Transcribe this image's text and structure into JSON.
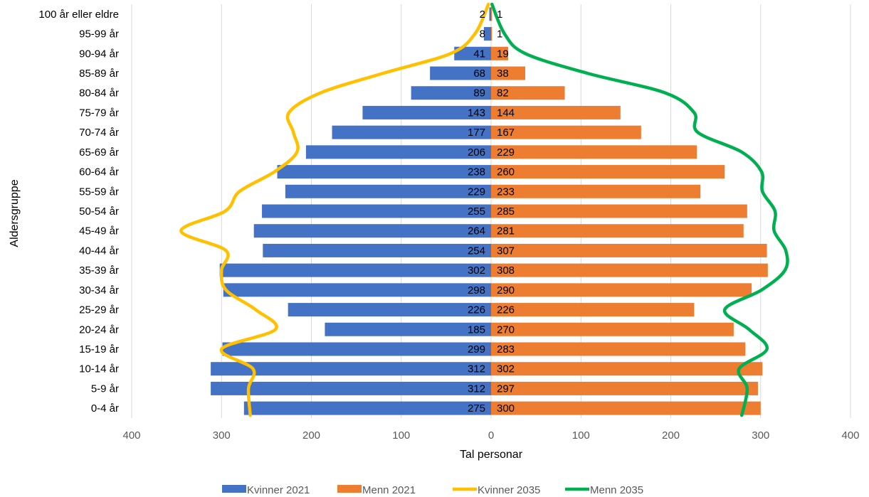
{
  "chart_data": {
    "type": "bar",
    "orientation": "horizontal",
    "title": "",
    "xlabel": "Tal personar",
    "ylabel": "Aldersgruppe",
    "xlim": [
      -400,
      400
    ],
    "x_ticks": [
      -400,
      -300,
      -200,
      -100,
      0,
      100,
      200,
      300,
      400
    ],
    "x_tick_labels": [
      "400",
      "300",
      "200",
      "100",
      "0",
      "100",
      "200",
      "300",
      "400"
    ],
    "grid": true,
    "legend_position": "bottom",
    "categories": [
      "0-4 år",
      "5-9 år",
      "10-14 år",
      "15-19 år",
      "20-24 år",
      "25-29 år",
      "30-34 år",
      "35-39 år",
      "40-44 år",
      "45-49 år",
      "50-54 år",
      "55-59 år",
      "60-64 år",
      "65-69 år",
      "70-74 år",
      "75-79 år",
      "80-84 år",
      "85-89 år",
      "90-94 år",
      "95-99 år",
      "100 år eller eldre"
    ],
    "series": [
      {
        "name": "Kvinner 2021",
        "kind": "bar",
        "side": "left",
        "color": "#4472C4",
        "values": [
          275,
          312,
          312,
          299,
          185,
          226,
          298,
          302,
          254,
          264,
          255,
          229,
          238,
          206,
          177,
          143,
          89,
          68,
          41,
          8,
          2
        ]
      },
      {
        "name": "Menn 2021",
        "kind": "bar",
        "side": "right",
        "color": "#ED7D31",
        "values": [
          300,
          297,
          302,
          283,
          270,
          226,
          290,
          308,
          307,
          281,
          285,
          233,
          260,
          229,
          167,
          144,
          82,
          38,
          19,
          1,
          1
        ]
      },
      {
        "name": "Kvinner 2035",
        "kind": "line",
        "side": "left",
        "color": "#FFC000",
        "values": [
          268,
          270,
          265,
          300,
          240,
          262,
          295,
          300,
          295,
          345,
          296,
          280,
          241,
          216,
          220,
          225,
          190,
          120,
          45,
          18,
          3
        ]
      },
      {
        "name": "Menn 2035",
        "kind": "line",
        "side": "right",
        "color": "#00B050",
        "values": [
          279,
          285,
          276,
          307,
          287,
          260,
          301,
          327,
          328,
          315,
          316,
          302,
          301,
          279,
          230,
          226,
          194,
          107,
          38,
          15,
          1
        ]
      }
    ]
  }
}
